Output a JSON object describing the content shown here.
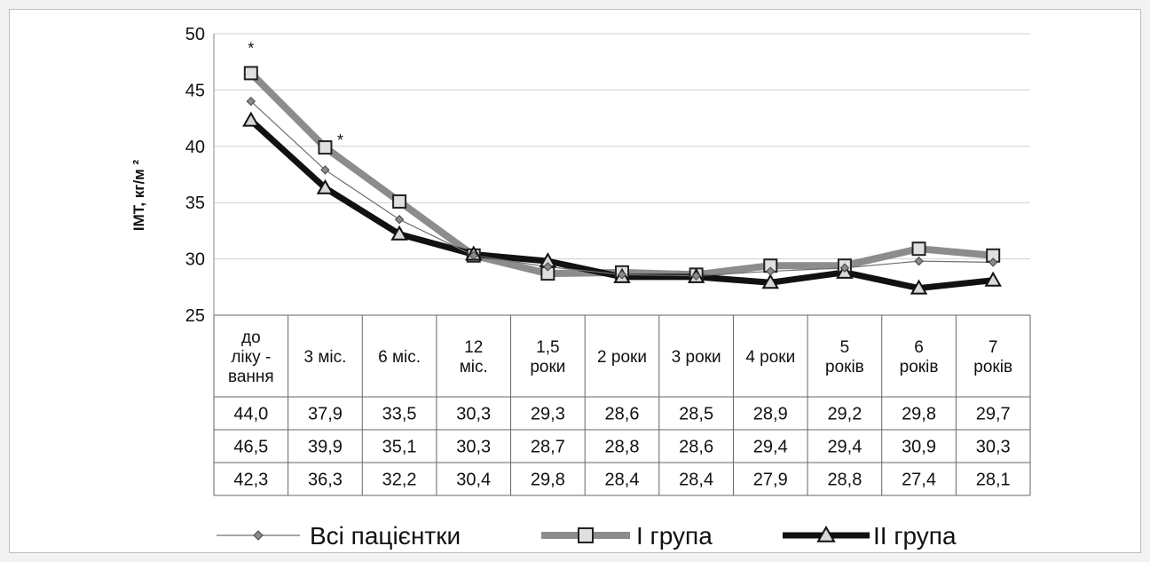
{
  "chart_data": {
    "type": "line",
    "ylabel": "ІМТ, кг/м ²",
    "ylim": [
      25,
      50
    ],
    "yticks": [
      "25",
      "30",
      "35",
      "40",
      "45",
      "50"
    ],
    "grid": true,
    "legend_position": "bottom",
    "categories": [
      [
        "до",
        "ліку -",
        "вання"
      ],
      [
        "3 міс."
      ],
      [
        "6 міс."
      ],
      [
        "12",
        "міс."
      ],
      [
        "1,5",
        "роки"
      ],
      [
        "2 роки"
      ],
      [
        "3 роки"
      ],
      [
        "4 роки"
      ],
      [
        "5",
        "років"
      ],
      [
        "6",
        "років"
      ],
      [
        "7",
        "років"
      ]
    ],
    "series": [
      {
        "name": "Всі пацієнтки",
        "color": "#707070",
        "marker": "diamond",
        "values": [
          44.0,
          37.9,
          33.5,
          30.3,
          29.3,
          28.6,
          28.5,
          28.9,
          29.2,
          29.8,
          29.7
        ],
        "labels": [
          "44,0",
          "37,9",
          "33,5",
          "30,3",
          "29,3",
          "28,6",
          "28,5",
          "28,9",
          "29,2",
          "29,8",
          "29,7"
        ]
      },
      {
        "name": "І група",
        "color": "#8c8c8c",
        "marker": "square",
        "values": [
          46.5,
          39.9,
          35.1,
          30.3,
          28.7,
          28.8,
          28.6,
          29.4,
          29.4,
          30.9,
          30.3
        ],
        "labels": [
          "46,5",
          "39,9",
          "35,1",
          "30,3",
          "28,7",
          "28,8",
          "28,6",
          "29,4",
          "29,4",
          "30,9",
          "30,3"
        ]
      },
      {
        "name": "ІІ група",
        "color": "#111111",
        "marker": "triangle",
        "values": [
          42.3,
          36.3,
          32.2,
          30.4,
          29.8,
          28.4,
          28.4,
          27.9,
          28.8,
          27.4,
          28.1
        ],
        "labels": [
          "42,3",
          "36,3",
          "32,2",
          "30,4",
          "29,8",
          "28,4",
          "28,4",
          "27,9",
          "28,8",
          "27,4",
          "28,1"
        ]
      }
    ],
    "annotations": [
      {
        "text": "*",
        "series": 1,
        "point": 0
      },
      {
        "text": "*",
        "series": 1,
        "point": 1
      }
    ]
  }
}
